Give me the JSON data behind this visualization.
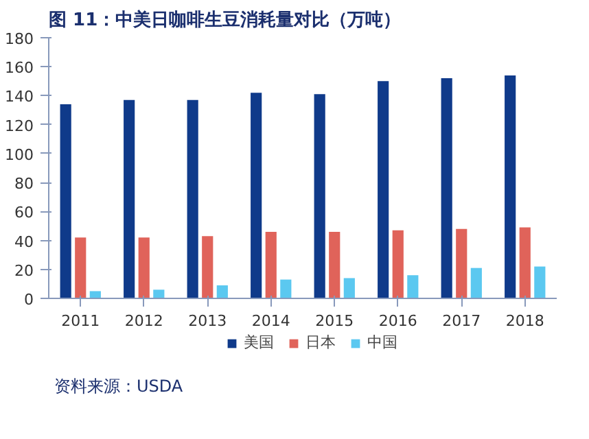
{
  "chart_data": {
    "type": "bar",
    "title": "图 11：中美日咖啡生豆消耗量对比（万吨）",
    "categories": [
      "2011",
      "2012",
      "2013",
      "2014",
      "2015",
      "2016",
      "2017",
      "2018"
    ],
    "series": [
      {
        "name": "美国",
        "color": "#0f3a8a",
        "values": [
          134,
          137,
          137,
          142,
          141,
          150,
          152,
          154
        ]
      },
      {
        "name": "日本",
        "color": "#e0635a",
        "values": [
          42,
          42,
          43,
          46,
          46,
          47,
          48,
          49
        ]
      },
      {
        "name": "中国",
        "color": "#5bc8f0",
        "values": [
          5,
          6,
          9,
          13,
          14,
          16,
          21,
          22
        ]
      }
    ],
    "ylim": [
      0,
      180
    ],
    "yticks": [
      0,
      20,
      40,
      60,
      80,
      100,
      120,
      140,
      160,
      180
    ],
    "grid": false,
    "legend": "bottom",
    "annotations": [
      "资料来源：USDA"
    ]
  }
}
